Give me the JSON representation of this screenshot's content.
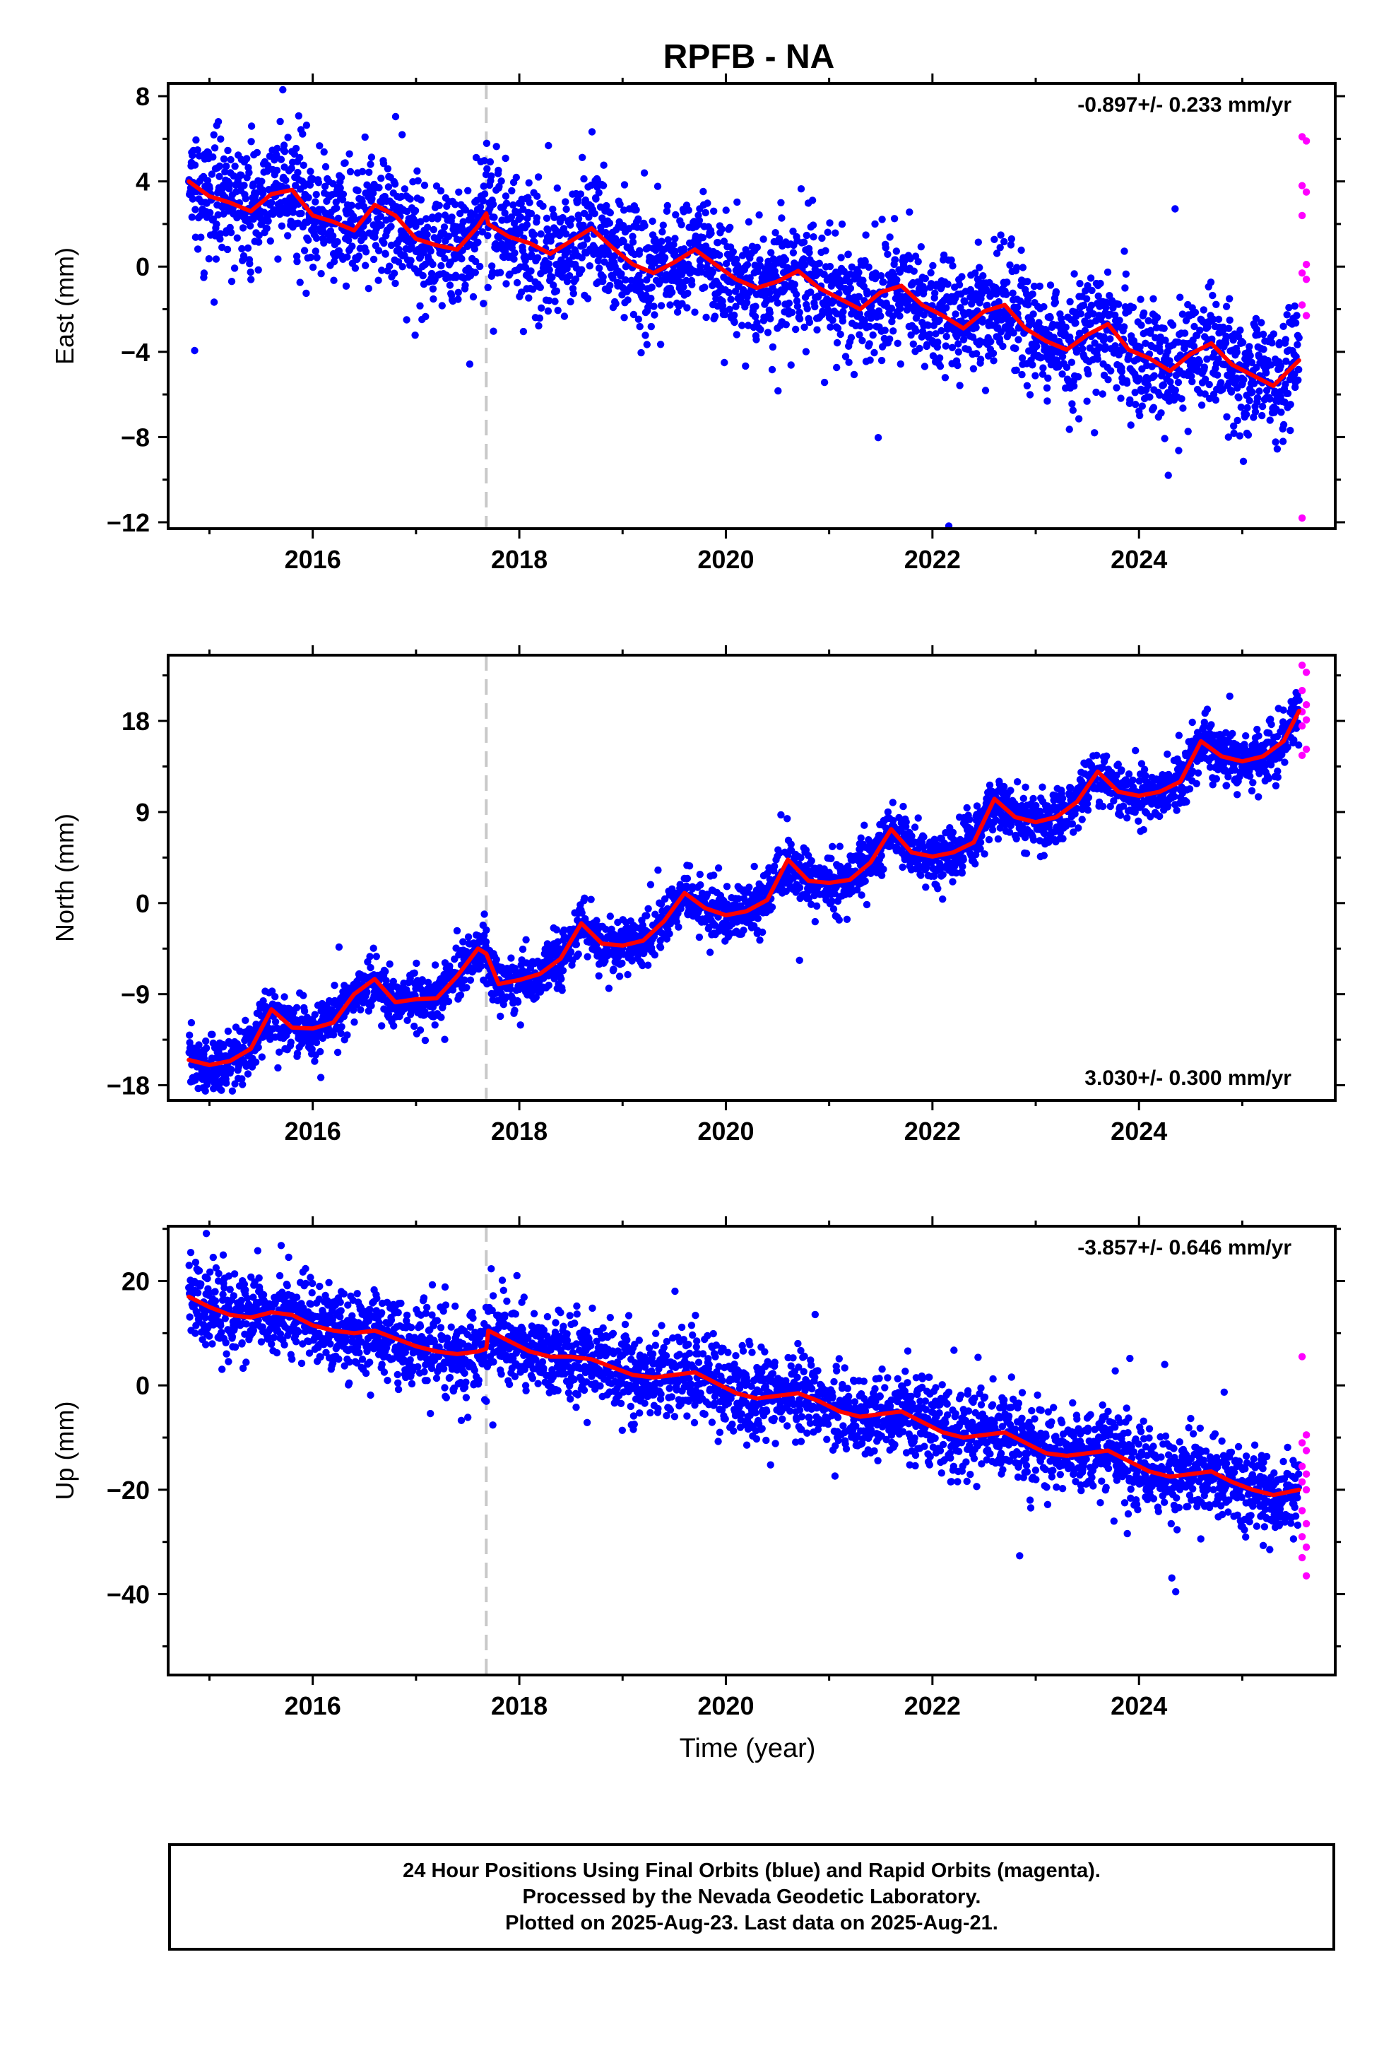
{
  "title": "RPFB - NA",
  "xlabel": "Time (year)",
  "colors": {
    "final": "#0000ff",
    "rapid": "#ff00ff",
    "model": "#ff0000",
    "event": "#c8c8c8"
  },
  "chart_data": [
    {
      "type": "scatter",
      "name": "east",
      "ylabel": "East (mm)",
      "rate_label": "-0.897+/- 0.233 mm/yr",
      "rate_position": "top-right",
      "xlim": [
        2014.6,
        2025.9
      ],
      "ylim": [
        -12.3,
        8.6
      ],
      "yticks": [
        -12,
        -8,
        -4,
        0,
        4,
        8
      ],
      "xticks": [
        2016,
        2018,
        2020,
        2022,
        2024
      ],
      "event_x": 2017.68,
      "start": 2014.8,
      "end": 2025.55,
      "model_x": [
        2014.8,
        2015.0,
        2015.2,
        2015.4,
        2015.6,
        2015.8,
        2016.0,
        2016.2,
        2016.4,
        2016.6,
        2016.8,
        2017.0,
        2017.2,
        2017.4,
        2017.6,
        2017.68,
        2017.7,
        2017.9,
        2018.1,
        2018.3,
        2018.5,
        2018.7,
        2018.9,
        2019.1,
        2019.3,
        2019.5,
        2019.7,
        2019.9,
        2020.1,
        2020.3,
        2020.5,
        2020.7,
        2020.9,
        2021.1,
        2021.3,
        2021.5,
        2021.7,
        2021.9,
        2022.1,
        2022.3,
        2022.5,
        2022.7,
        2022.9,
        2023.1,
        2023.3,
        2023.5,
        2023.7,
        2023.9,
        2024.1,
        2024.3,
        2024.5,
        2024.7,
        2024.9,
        2025.1,
        2025.3,
        2025.55
      ],
      "model_y": [
        4.0,
        3.3,
        3.0,
        2.6,
        3.4,
        3.6,
        2.4,
        2.1,
        1.7,
        2.9,
        2.4,
        1.3,
        1.0,
        0.8,
        1.9,
        2.5,
        2.0,
        1.4,
        1.1,
        0.6,
        1.2,
        1.8,
        0.9,
        0.1,
        -0.3,
        0.2,
        0.8,
        0.1,
        -0.6,
        -1.0,
        -0.7,
        -0.2,
        -1.0,
        -1.5,
        -2.0,
        -1.2,
        -0.9,
        -1.8,
        -2.3,
        -2.9,
        -2.1,
        -1.8,
        -2.9,
        -3.5,
        -3.9,
        -3.2,
        -2.7,
        -3.9,
        -4.3,
        -4.9,
        -4.1,
        -3.6,
        -4.6,
        -5.1,
        -5.6,
        -4.4
      ],
      "scatter_sigma": 1.4,
      "rapid_x": 2025.6,
      "rapid_values": [
        6.1,
        5.9,
        3.8,
        3.5,
        2.4,
        0.1,
        -0.3,
        -0.6,
        -1.8,
        -2.3,
        -11.8
      ]
    },
    {
      "type": "scatter",
      "name": "north",
      "ylabel": "North (mm)",
      "rate_label": "3.030+/- 0.300 mm/yr",
      "rate_position": "bottom-right",
      "xlim": [
        2014.6,
        2025.9
      ],
      "ylim": [
        -19.5,
        24.5
      ],
      "yticks": [
        -18,
        -9,
        0,
        9,
        18
      ],
      "xticks": [
        2016,
        2018,
        2020,
        2022,
        2024
      ],
      "event_x": 2017.68,
      "start": 2014.8,
      "end": 2025.55,
      "model_x": [
        2014.8,
        2015.0,
        2015.2,
        2015.4,
        2015.6,
        2015.8,
        2016.0,
        2016.2,
        2016.4,
        2016.6,
        2016.8,
        2017.0,
        2017.2,
        2017.4,
        2017.6,
        2017.68,
        2017.8,
        2018.0,
        2018.2,
        2018.4,
        2018.6,
        2018.8,
        2019.0,
        2019.2,
        2019.4,
        2019.6,
        2019.8,
        2020.0,
        2020.2,
        2020.4,
        2020.6,
        2020.8,
        2021.0,
        2021.2,
        2021.4,
        2021.6,
        2021.8,
        2022.0,
        2022.2,
        2022.4,
        2022.6,
        2022.8,
        2023.0,
        2023.2,
        2023.4,
        2023.6,
        2023.8,
        2024.0,
        2024.2,
        2024.4,
        2024.6,
        2024.8,
        2025.0,
        2025.2,
        2025.4,
        2025.55
      ],
      "model_y": [
        -15.5,
        -16.0,
        -15.6,
        -14.4,
        -10.5,
        -12.3,
        -12.4,
        -11.8,
        -9.0,
        -7.5,
        -9.8,
        -9.5,
        -9.4,
        -7.2,
        -4.5,
        -5.0,
        -8.0,
        -7.6,
        -7.0,
        -5.5,
        -2.0,
        -4.0,
        -4.2,
        -3.7,
        -1.8,
        1.0,
        -0.5,
        -1.2,
        -0.8,
        0.3,
        4.3,
        2.2,
        2.0,
        2.3,
        4.0,
        7.3,
        5.0,
        4.6,
        5.0,
        6.0,
        10.3,
        8.5,
        8.0,
        8.5,
        10.0,
        13.0,
        11.0,
        10.6,
        11.0,
        12.0,
        16.0,
        14.5,
        14.0,
        14.5,
        16.0,
        19.0
      ],
      "scatter_sigma": 1.3,
      "rapid_x": 2025.6,
      "rapid_values": [
        23.5,
        22.8,
        21.0,
        19.6,
        18.9,
        18.1,
        17.5,
        15.2,
        14.6
      ]
    },
    {
      "type": "scatter",
      "name": "up",
      "ylabel": "Up (mm)",
      "rate_label": "-3.857+/- 0.646 mm/yr",
      "rate_position": "top-right",
      "xlim": [
        2014.6,
        2025.9
      ],
      "ylim": [
        -55.5,
        30.5
      ],
      "yticks": [
        -40,
        -20,
        0,
        20
      ],
      "xticks": [
        2016,
        2018,
        2020,
        2022,
        2024
      ],
      "event_x": 2017.68,
      "start": 2014.8,
      "end": 2025.55,
      "model_x": [
        2014.8,
        2015.0,
        2015.2,
        2015.4,
        2015.6,
        2015.8,
        2016.0,
        2016.2,
        2016.4,
        2016.6,
        2016.8,
        2017.0,
        2017.2,
        2017.4,
        2017.6,
        2017.68,
        2017.7,
        2017.9,
        2018.1,
        2018.3,
        2018.5,
        2018.7,
        2018.9,
        2019.1,
        2019.3,
        2019.5,
        2019.7,
        2019.9,
        2020.1,
        2020.3,
        2020.5,
        2020.7,
        2020.9,
        2021.1,
        2021.3,
        2021.5,
        2021.7,
        2021.9,
        2022.1,
        2022.3,
        2022.5,
        2022.7,
        2022.9,
        2023.1,
        2023.3,
        2023.5,
        2023.7,
        2023.9,
        2024.1,
        2024.3,
        2024.5,
        2024.7,
        2024.9,
        2025.1,
        2025.3,
        2025.55
      ],
      "model_y": [
        17.0,
        15.0,
        13.5,
        13.0,
        14.0,
        13.5,
        11.5,
        10.5,
        10.0,
        10.5,
        9.0,
        7.5,
        6.5,
        6.0,
        6.5,
        7.0,
        10.5,
        8.5,
        6.5,
        5.5,
        5.5,
        5.0,
        3.5,
        2.0,
        1.5,
        2.0,
        2.5,
        0.5,
        -1.5,
        -2.5,
        -2.0,
        -1.5,
        -3.0,
        -5.0,
        -6.0,
        -5.5,
        -5.0,
        -7.0,
        -9.0,
        -10.0,
        -9.5,
        -9.0,
        -11.0,
        -13.0,
        -13.5,
        -13.0,
        -12.5,
        -14.5,
        -16.5,
        -17.5,
        -17.0,
        -16.5,
        -18.5,
        -20.0,
        -21.0,
        -20.0
      ],
      "scatter_sigma": 4.0,
      "rapid_x": 2025.6,
      "rapid_values": [
        5.5,
        -9.5,
        -11.0,
        -12.5,
        -15.5,
        -17.0,
        -18.5,
        -20.0,
        -24.0,
        -26.5,
        -29.0,
        -31.0,
        -33.0,
        -36.5
      ]
    }
  ],
  "footer": {
    "line1": "24 Hour Positions Using Final Orbits (blue) and Rapid Orbits (magenta).",
    "line2": "Processed by the Nevada Geodetic Laboratory.",
    "line3": "Plotted on 2025-Aug-23. Last data on 2025-Aug-21."
  }
}
